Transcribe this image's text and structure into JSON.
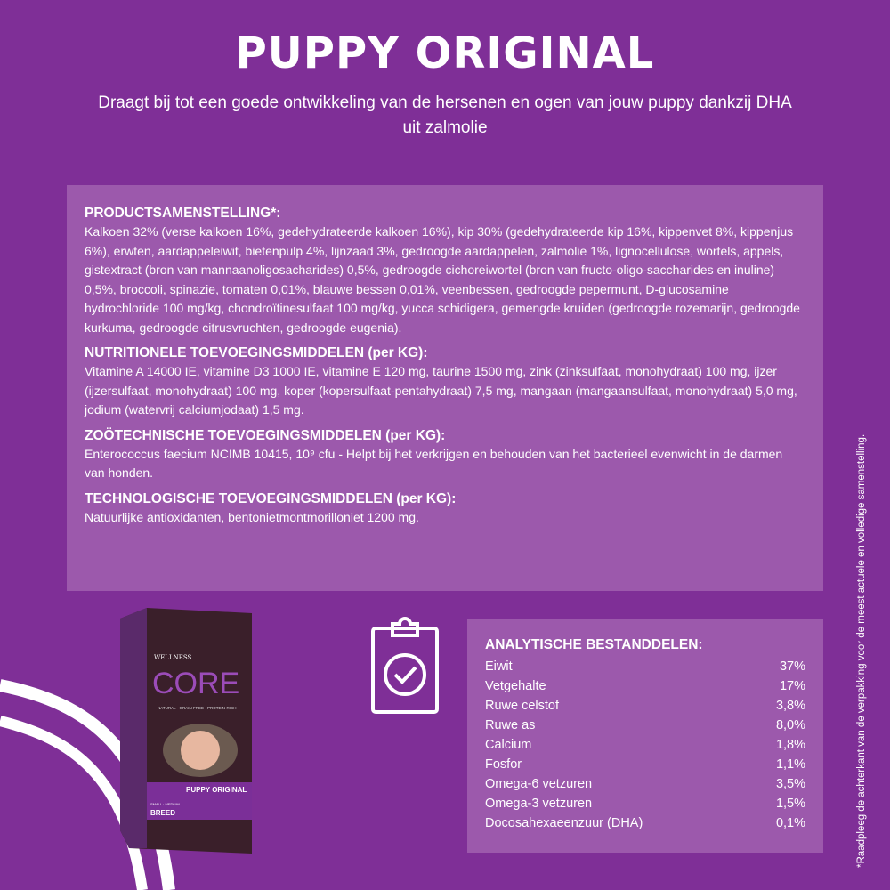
{
  "title": "PUPPY ORIGINAL",
  "subtitle": "Draagt bij tot een goede ontwikkeling van de hersenen en ogen van jouw puppy dankzij DHA uit zalmolie",
  "sections": [
    {
      "heading": "PRODUCTSAMENSTELLING*:",
      "text": "Kalkoen 32% (verse kalkoen 16%, gedehydrateerde kalkoen 16%), kip 30% (gedehydrateerde kip 16%, kippenvet 8%, kippenjus 6%), erwten, aardappeleiwit, bietenpulp 4%, lijnzaad 3%, gedroogde aardappelen, zalmolie 1%, lignocellulose, wortels, appels, gistextract (bron van mannaanoligosacharides) 0,5%, gedroogde cichoreiwortel (bron van fructo-oligo-saccharides en inuline) 0,5%, broccoli, spinazie, tomaten 0,01%, blauwe bessen 0,01%, veenbessen, gedroogde pepermunt, D-glucosamine hydrochloride 100 mg/kg, chondroïtinesulfaat 100 mg/kg, yucca schidigera, gemengde kruiden (gedroogde rozemarijn, gedroogde kurkuma, gedroogde citrusvruchten, gedroogde eugenia)."
    },
    {
      "heading": "NUTRITIONELE TOEVOEGINGSMIDDELEN (per KG):",
      "text": "Vitamine A 14000 IE, vitamine D3 1000 IE, vitamine E 120 mg, taurine 1500 mg, zink (zinksulfaat, monohydraat) 100 mg, ijzer (ijzersulfaat, monohydraat) 100 mg, koper (kopersulfaat-pentahydraat) 7,5 mg, mangaan (mangaansulfaat, monohydraat) 5,0 mg, jodium (watervrij calciumjodaat) 1,5 mg."
    },
    {
      "heading": "ZOÖTECHNISCHE TOEVOEGINGSMIDDELEN (per KG):",
      "text": "Enterococcus faecium NCIMB 10415, 10⁹ cfu - Helpt bij het verkrijgen en behouden van het bacterieel evenwicht in de darmen van honden."
    },
    {
      "heading": "TECHNOLOGISCHE TOEVOEGINGSMIDDELEN (per KG):",
      "text": "Natuurlijke antioxidanten, bentonietmontmorilloniet 1200 mg."
    }
  ],
  "analytical": {
    "heading": "ANALYTISCHE BESTANDDELEN:",
    "rows": [
      {
        "name": "Eiwit",
        "value": "37%"
      },
      {
        "name": "Vetgehalte",
        "value": "17%"
      },
      {
        "name": "Ruwe celstof",
        "value": "3,8%"
      },
      {
        "name": "Ruwe as",
        "value": "8,0%"
      },
      {
        "name": "Calcium",
        "value": "1,8%"
      },
      {
        "name": "Fosfor",
        "value": "1,1%"
      },
      {
        "name": "Omega-6 vetzuren",
        "value": "3,5%"
      },
      {
        "name": "Omega-3 vetzuren",
        "value": "1,5%"
      },
      {
        "name": "Docosahexaeenzuur (DHA)",
        "value": "0,1%"
      }
    ]
  },
  "side_note": "*Raadpleeg de achterkant van de verpakking voor de meest actuele en volledige samenstelling.",
  "bag": {
    "brand": "WELLNESS",
    "logo": "CORE",
    "tagline": "NATURAL · GRAIN FREE · PROTEIN-RICH",
    "product": "PUPPY ORIGINAL",
    "breed_size": "SMALL · MEDIUM",
    "breed": "BREED"
  },
  "colors": {
    "background": "#7f2f97",
    "panel": "#9c59ac",
    "bag": "#3a1f2a"
  },
  "icons": {
    "clipboard": "clipboard-check-icon"
  }
}
